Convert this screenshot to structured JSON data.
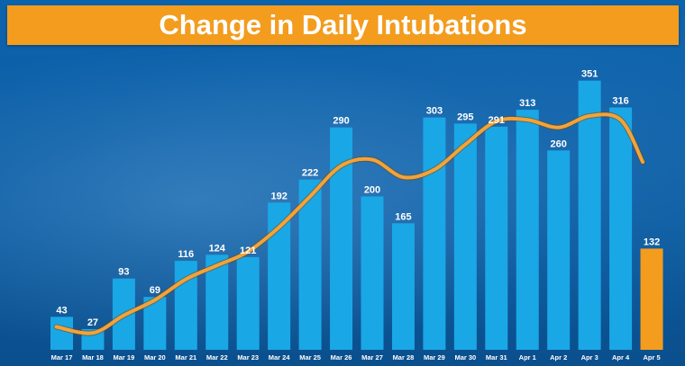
{
  "title": "Change in Daily Intubations",
  "colors": {
    "bar": "#1aa7e6",
    "highlight_bar": "#f39c1e",
    "trend_line": "#f2a33a",
    "title_background": "#f39c1e",
    "background": "#0b5ea6"
  },
  "chart_data": {
    "type": "bar",
    "title": "Change in Daily Intubations",
    "xlabel": "",
    "ylabel": "",
    "ylim": [
      0,
      360
    ],
    "grid": false,
    "legend": "none",
    "categories": [
      "Mar 17",
      "Mar 18",
      "Mar 19",
      "Mar 20",
      "Mar 21",
      "Mar 22",
      "Mar 23",
      "Mar 24",
      "Mar 25",
      "Mar 26",
      "Mar 27",
      "Mar 28",
      "Mar 29",
      "Mar 30",
      "Mar 31",
      "Apr 1",
      "Apr 2",
      "Apr 3",
      "Apr 4",
      "Apr 5"
    ],
    "values": [
      43,
      27,
      93,
      69,
      116,
      124,
      121,
      192,
      222,
      290,
      200,
      165,
      303,
      295,
      291,
      313,
      260,
      351,
      316,
      132
    ],
    "highlighted_category": "Apr 5",
    "trend_line": {
      "type": "smoothed",
      "values": [
        30,
        22,
        45,
        65,
        92,
        110,
        128,
        160,
        200,
        240,
        248,
        225,
        235,
        268,
        298,
        300,
        290,
        305,
        300,
        245
      ]
    }
  }
}
